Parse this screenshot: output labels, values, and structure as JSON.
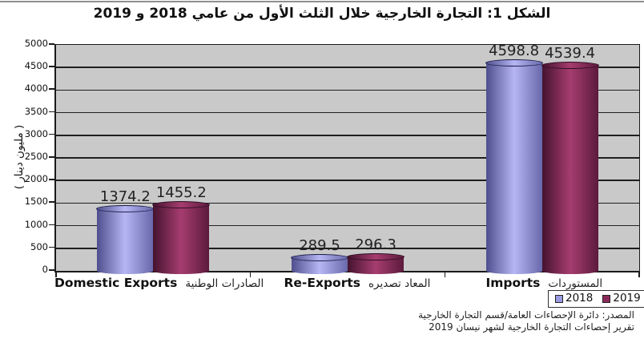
{
  "title": "الشكل 1: التجارة الخارجية خلال الثلث الأول من عامي 2018 و 2019",
  "chart_data": {
    "type": "bar",
    "title": "الشكل 1: التجارة الخارجية خلال الثلث الأول من عامي 2018 و 2019",
    "xlabel": "",
    "ylabel": "( مليون دينار )",
    "ylim": [
      0,
      5000
    ],
    "y_ticks": [
      0,
      500,
      1000,
      1500,
      2000,
      2500,
      3000,
      3500,
      4000,
      4500,
      5000
    ],
    "grid": true,
    "legend_position": "bottom-right",
    "plot_bg_color": "#c9c9c9",
    "categories": [
      {
        "en": "Domestic Exports",
        "ar": "الصادرات الوطنية"
      },
      {
        "en": "Re-Exports",
        "ar": "المعاد تصديره"
      },
      {
        "en": "Imports",
        "ar": "المستوردات"
      }
    ],
    "series": [
      {
        "name": "2018",
        "values": [
          1374.2,
          289.5,
          4598.8
        ],
        "colors": {
          "edge_left": "#4f4f8e",
          "mid": "#b6b6f4",
          "edge_right": "#6868ab",
          "top_border": "#1c1c44",
          "legend": "#9a9ae2"
        }
      },
      {
        "name": "2019",
        "values": [
          1455.2,
          296.3,
          4539.4
        ],
        "colors": {
          "edge_left": "#45132f",
          "mid": "#a63d70",
          "edge_right": "#5c1a3c",
          "top_border": "#2b0d22",
          "legend": "#8a2a58"
        }
      }
    ]
  },
  "source": {
    "line1": "المصدر: دائرة الإحصاءات العامة/قسم التجارة الخارجية",
    "line2": "تقرير إحصاءات التجارة الخارجية لشهر نيسان 2019"
  }
}
